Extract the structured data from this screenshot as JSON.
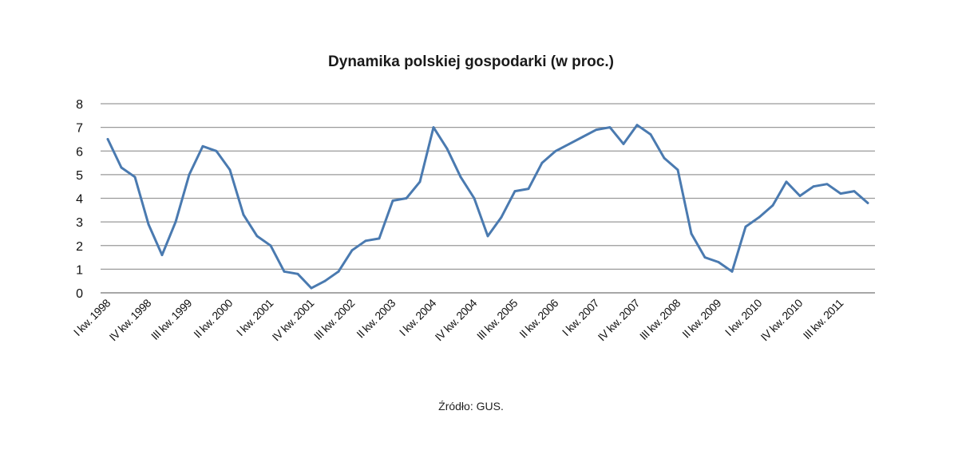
{
  "chart_data": {
    "type": "line",
    "title": "Dynamika polskiej gospodarki (w proc.)",
    "source": "Źródło: GUS.",
    "ylim": [
      0,
      8
    ],
    "yticks": [
      0,
      1,
      2,
      3,
      4,
      5,
      6,
      7,
      8
    ],
    "grid": true,
    "legend": "none",
    "x_tick_labels": [
      {
        "index": 0,
        "label": "I kw. 1998"
      },
      {
        "index": 3,
        "label": "IV kw. 1998"
      },
      {
        "index": 6,
        "label": "III kw. 1999"
      },
      {
        "index": 9,
        "label": "II kw. 2000"
      },
      {
        "index": 12,
        "label": "I kw. 2001"
      },
      {
        "index": 15,
        "label": "IV kw. 2001"
      },
      {
        "index": 18,
        "label": "III kw. 2002"
      },
      {
        "index": 21,
        "label": "II kw. 2003"
      },
      {
        "index": 24,
        "label": "I kw. 2004"
      },
      {
        "index": 27,
        "label": "IV kw. 2004"
      },
      {
        "index": 30,
        "label": "III kw. 2005"
      },
      {
        "index": 33,
        "label": "II kw. 2006"
      },
      {
        "index": 36,
        "label": "I kw. 2007"
      },
      {
        "index": 39,
        "label": "IV kw. 2007"
      },
      {
        "index": 42,
        "label": "III kw. 2008"
      },
      {
        "index": 45,
        "label": "II kw. 2009"
      },
      {
        "index": 48,
        "label": "I kw. 2010"
      },
      {
        "index": 51,
        "label": "IV kw. 2010"
      },
      {
        "index": 54,
        "label": "III kw. 2011"
      }
    ],
    "series": [
      {
        "color": "#4a7ab0",
        "values": [
          6.5,
          5.3,
          4.9,
          2.9,
          1.6,
          3.0,
          5.0,
          6.2,
          6.0,
          5.2,
          3.3,
          2.4,
          2.0,
          0.9,
          0.8,
          0.2,
          0.5,
          0.9,
          1.8,
          2.2,
          2.3,
          3.9,
          4.0,
          4.7,
          7.0,
          6.1,
          4.9,
          4.0,
          2.4,
          3.2,
          4.3,
          4.4,
          5.5,
          6.0,
          6.3,
          6.6,
          6.9,
          7.0,
          6.3,
          7.1,
          6.7,
          5.7,
          5.2,
          2.5,
          1.5,
          1.3,
          0.9,
          2.8,
          3.2,
          3.7,
          4.7,
          4.1,
          4.5,
          4.6,
          4.2,
          4.3,
          3.8
        ]
      }
    ]
  }
}
